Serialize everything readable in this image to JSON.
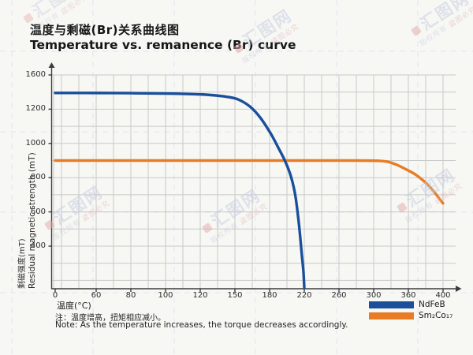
{
  "header": {
    "title_zh": "温度与剩磁(Br)关系曲线图",
    "title_en": "Temperature vs. remanence (Br) curve"
  },
  "chart_data": {
    "type": "line",
    "title": "Temperature vs. remanence (Br) curve",
    "grid": true,
    "legend_position": "bottom-right",
    "x_axis": {
      "label": "温度(°C)",
      "ticks": [
        0,
        60,
        80,
        100,
        120,
        150,
        180,
        220,
        260,
        300,
        360,
        400
      ],
      "scale_note": "ticks printed at equal spacing despite non-uniform values"
    },
    "y_axis": {
      "label_zh": "剩磁强度(mT)",
      "label_en": "Residual magnetic strength (mT)",
      "ticks": [
        1600,
        1200,
        1000,
        800,
        600,
        400
      ],
      "origin_label": 0,
      "scale_note": "labels printed at equal spacing despite non-uniform values"
    },
    "series": [
      {
        "name": "NdFeB",
        "color": "#1a4f9c",
        "points": [
          [
            0,
            1390
          ],
          [
            40,
            1390
          ],
          [
            80,
            1387
          ],
          [
            105,
            1382
          ],
          [
            125,
            1370
          ],
          [
            140,
            1350
          ],
          [
            152,
            1318
          ],
          [
            163,
            1230
          ],
          [
            172,
            1150
          ],
          [
            181,
            1060
          ],
          [
            190,
            975
          ],
          [
            198,
            895
          ],
          [
            205,
            800
          ],
          [
            210,
            685
          ],
          [
            214,
            520
          ],
          [
            217,
            330
          ],
          [
            219,
            160
          ],
          [
            220,
            0
          ]
        ]
      },
      {
        "name": "Sm₂Co₁₇",
        "color": "#e87c25",
        "points": [
          [
            0,
            900
          ],
          [
            150,
            900
          ],
          [
            280,
            900
          ],
          [
            310,
            898
          ],
          [
            325,
            892
          ],
          [
            340,
            875
          ],
          [
            355,
            850
          ],
          [
            370,
            812
          ],
          [
            385,
            745
          ],
          [
            400,
            650
          ]
        ]
      }
    ]
  },
  "footnote": {
    "zh": "注：温度增高，扭矩相应减小。",
    "en": "Note: As the temperature increases, the torque decreases accordingly."
  },
  "watermark": {
    "brand": "汇图网",
    "line1": "版权所有",
    "line2": "盗图必究"
  }
}
